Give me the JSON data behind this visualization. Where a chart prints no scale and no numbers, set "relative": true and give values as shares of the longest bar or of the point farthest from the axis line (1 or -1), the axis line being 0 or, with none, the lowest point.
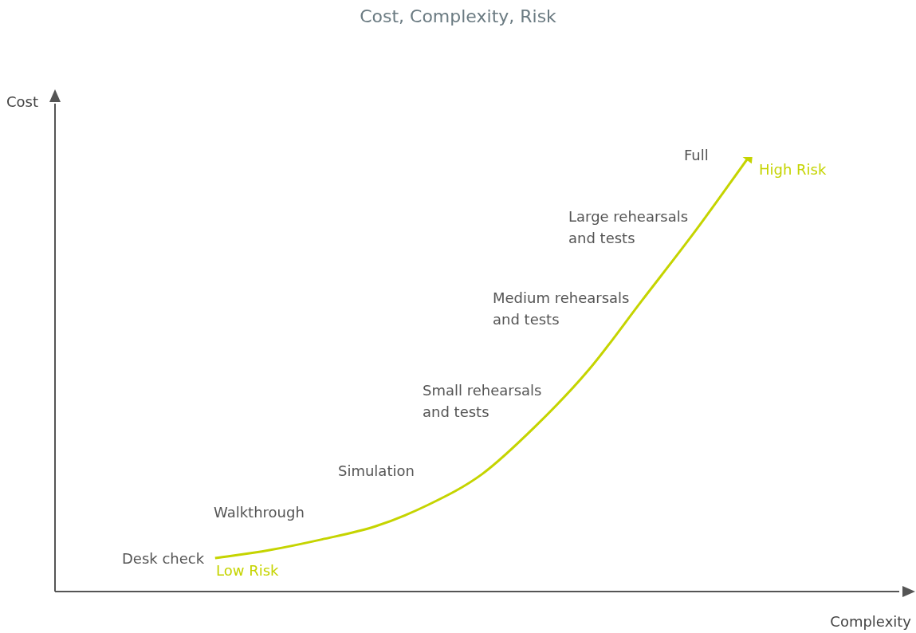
{
  "chart_data": {
    "type": "line",
    "title": "Cost, Complexity, Risk",
    "xlabel": "Complexity",
    "ylabel": "Cost",
    "relative": true,
    "categories": [
      null,
      null,
      null,
      null,
      null,
      null,
      null,
      null,
      null,
      null,
      null,
      null,
      null,
      null,
      null,
      null,
      null
    ],
    "series": [
      {
        "color": "#c5d400",
        "values": [
          null,
          null,
          null,
          0.077,
          0.095,
          0.12,
          0.15,
          0.2,
          0.27,
          0.38,
          0.51,
          0.67,
          0.83,
          1.0,
          null,
          null,
          null
        ]
      }
    ],
    "annotations": [
      "Low Risk",
      "High Risk",
      "Desk check",
      "Walkthrough",
      "Simulation",
      "Small rehearsals\nand tests",
      "Medium rehearsals\nand tests",
      "Large rehearsals\nand tests",
      "Full"
    ],
    "legend": false,
    "marker": "none"
  }
}
